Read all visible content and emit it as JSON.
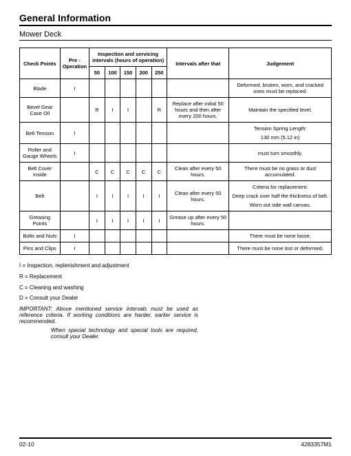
{
  "header": {
    "title": "General Information",
    "subtitle": "Mower Deck"
  },
  "table": {
    "head": {
      "check_points": "Check Points",
      "pre_op": "Pre - Operation",
      "insp_head": "Inspection and servicing intervals (hours of operation)",
      "c50": "50",
      "c100": "100",
      "c150": "150",
      "c200": "200",
      "c250": "250",
      "after": "Intervals after that",
      "judge": "Judgement"
    },
    "rows": [
      {
        "cp": "Blade",
        "pre": "I",
        "c50": "",
        "c100": "",
        "c150": "",
        "c200": "",
        "c250": "",
        "after": "",
        "judge": "Deformed, broken, worn, and cracked ones must be replaced."
      },
      {
        "cp": "Bevel Gear Case Oil",
        "pre": "",
        "c50": "R",
        "c100": "I",
        "c150": "I",
        "c200": "",
        "c250": "R",
        "after": "Replace after initial 50 hours and then after every 200 hours.",
        "judge": "Maintain the specified level."
      },
      {
        "cp": "Belt Tension",
        "pre": "I",
        "c50": "",
        "c100": "",
        "c150": "",
        "c200": "",
        "c250": "",
        "after": "",
        "judge": "Tension Spring Length:\n130 mm  (5.12 in)"
      },
      {
        "cp": "Roller and Gauge Wheels",
        "pre": "I",
        "c50": "",
        "c100": "",
        "c150": "",
        "c200": "",
        "c250": "",
        "after": "",
        "judge": "must turn smoothly."
      },
      {
        "cp": "Belt Cover Inside",
        "pre": "",
        "c50": "C",
        "c100": "C",
        "c150": "C",
        "c200": "C",
        "c250": "C",
        "after": "Clean after every 50 hours.",
        "judge": "There must be no grass or dust accumulated."
      },
      {
        "cp": "Belt",
        "pre": "",
        "c50": "I",
        "c100": "I",
        "c150": "I",
        "c200": "I",
        "c250": "I",
        "after": "Clean after every 50 hours.",
        "judge": "Criteria for replacement:\nDeep crack over half the thickness of belt.\nWorn out side wall canvas."
      },
      {
        "cp": "Greasing Points",
        "pre": "",
        "c50": "I",
        "c100": "I",
        "c150": "I",
        "c200": "I",
        "c250": "I",
        "after": "Grease up after every 50 hours.",
        "judge": ""
      },
      {
        "cp": "Bolts and Nuts",
        "pre": "I",
        "c50": "",
        "c100": "",
        "c150": "",
        "c200": "",
        "c250": "",
        "after": "",
        "judge": "There must be none loose."
      },
      {
        "cp": "Pins and Clips",
        "pre": "I",
        "c50": "",
        "c100": "",
        "c150": "",
        "c200": "",
        "c250": "",
        "after": "",
        "judge": "There must be none lost or deformed."
      }
    ]
  },
  "legend": {
    "I": "I = Inspection, replenishment and adjustment",
    "R": "R = Replacement",
    "C": "C = Cleaning and washing",
    "D": "D = Consult your Dealer"
  },
  "important": {
    "label": "IMPORTANT:",
    "text": "Above mentioned service intervals must be used as reference criteria. If working conditions are harder, earlier service is recommended.",
    "text2": "When special technology and special tools are required, consult your Dealer."
  },
  "footer": {
    "left": "02-10",
    "right": "4283357M1"
  }
}
